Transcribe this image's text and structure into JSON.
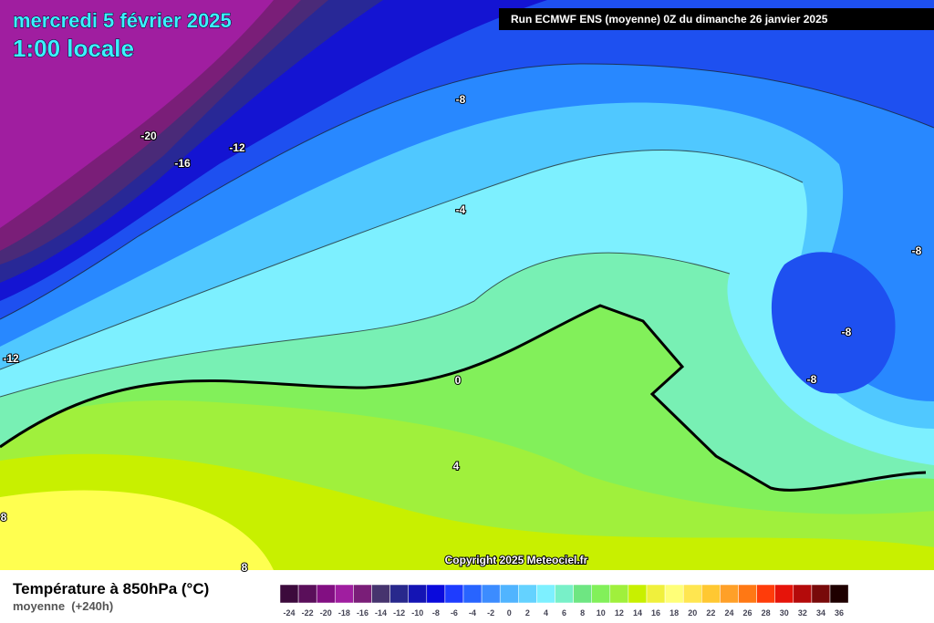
{
  "header": {
    "date": "mercredi 5 février 2025",
    "time": "1:00 locale",
    "run": "Run ECMWF ENS (moyenne) 0Z du dimanche 26 janvier 2025"
  },
  "map": {
    "contour_labels": [
      -8,
      -20,
      -16,
      -12,
      -4,
      -8,
      -8,
      -8,
      -12,
      0,
      4,
      8,
      8
    ],
    "copyright": "Copyright 2025 Meteociel.fr"
  },
  "legend": {
    "title": "Température à 850hPa (°C)",
    "subtitle": "moyenne  (+240h)",
    "ticks": [
      -24,
      -22,
      -20,
      -18,
      -16,
      -14,
      -12,
      -10,
      -8,
      -6,
      -4,
      -2,
      0,
      2,
      4,
      6,
      8,
      10,
      12,
      14,
      16,
      18,
      20,
      22,
      24,
      26,
      28,
      30,
      32,
      34,
      36
    ],
    "colors": [
      "#3c0a3c",
      "#5a0f5a",
      "#820f82",
      "#a01ea0",
      "#7a1e78",
      "#46346e",
      "#28288c",
      "#1414b4",
      "#0a0adc",
      "#1e3cff",
      "#2864ff",
      "#3c8cff",
      "#50b4ff",
      "#64d2ff",
      "#7df0ff",
      "#78f0c8",
      "#6ee682",
      "#82f05a",
      "#a0f03c",
      "#c8f000",
      "#f0f03c",
      "#ffff78",
      "#ffe650",
      "#ffc832",
      "#ffa028",
      "#ff7814",
      "#ff3c0a",
      "#e6140a",
      "#b40a0a",
      "#780a0a",
      "#1e0000"
    ]
  }
}
